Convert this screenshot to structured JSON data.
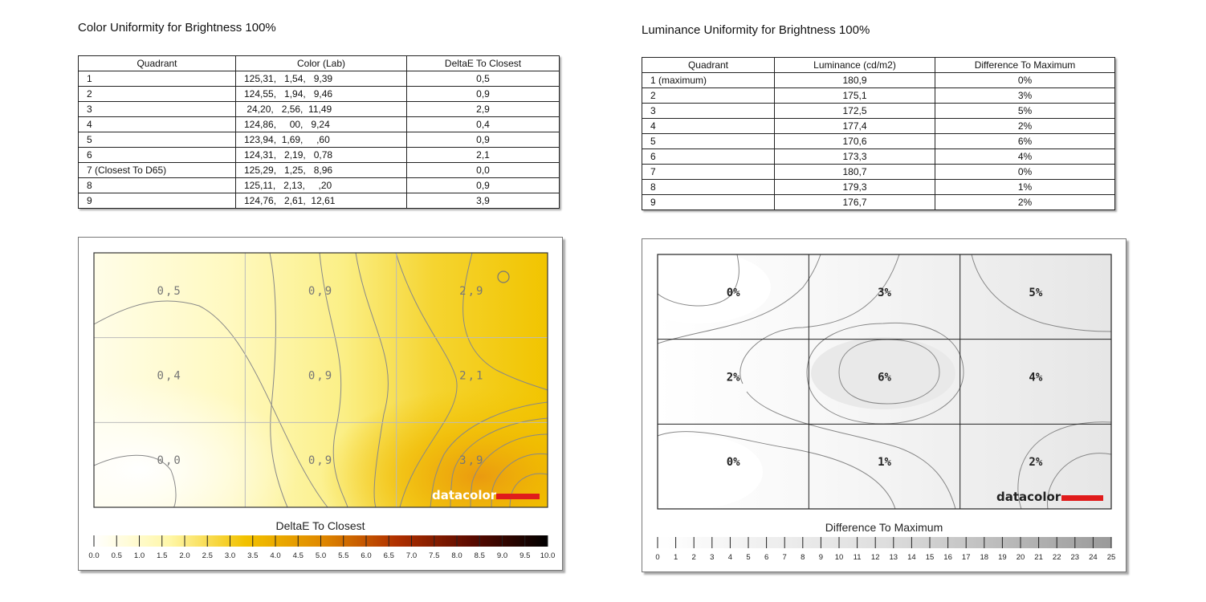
{
  "chart_data": [
    {
      "type": "table",
      "title": "Color Uniformity for Brightness 100%",
      "columns": [
        "Quadrant",
        "Color (Lab)",
        "DeltaE To Closest"
      ],
      "rows": [
        [
          "1",
          "125,31,   1,54,   9,39",
          "0,5"
        ],
        [
          "2",
          "124,55,   1,94,   9,46",
          "0,9"
        ],
        [
          "3",
          " 24,20,   2,56,  11,49",
          "2,9"
        ],
        [
          "4",
          "124,86,     00,   9,24",
          "0,4"
        ],
        [
          "5",
          "123,94,  1,69,     ,60",
          "0,9"
        ],
        [
          "6",
          "124,31,   2,19,   0,78",
          "2,1"
        ],
        [
          "7 (Closest To D65)",
          "125,29,   1,25,   8,96",
          "0,0"
        ],
        [
          "8",
          "125,11,   2,13,     ,20",
          "0,9"
        ],
        [
          "9",
          "124,76,   2,61,  12,61",
          "3,9"
        ]
      ]
    },
    {
      "type": "table",
      "title": "Luminance Uniformity for Brightness 100%",
      "columns": [
        "Quadrant",
        "Luminance (cd/m2)",
        "Difference To Maximum"
      ],
      "rows": [
        [
          "1 (maximum)",
          "180,9",
          "0%"
        ],
        [
          "2",
          "175,1",
          "3%"
        ],
        [
          "3",
          "172,5",
          "5%"
        ],
        [
          "4",
          "177,4",
          "2%"
        ],
        [
          "5",
          "170,6",
          "6%"
        ],
        [
          "6",
          "173,3",
          "4%"
        ],
        [
          "7",
          "180,7",
          "0%"
        ],
        [
          "8",
          "179,3",
          "1%"
        ],
        [
          "9",
          "176,7",
          "2%"
        ]
      ]
    },
    {
      "type": "heatmap",
      "title": "DeltaE To Closest",
      "grid": [
        [
          "0,5",
          "0,9",
          "2,9"
        ],
        [
          "0,4",
          "0,9",
          "2,1"
        ],
        [
          "0,0",
          "0,9",
          "3,9"
        ]
      ],
      "values": [
        [
          0.5,
          0.9,
          2.9
        ],
        [
          0.4,
          0.9,
          2.1
        ],
        [
          0.0,
          0.9,
          3.9
        ]
      ],
      "scale_ticks": [
        "0.0",
        "0.5",
        "1.0",
        "1.5",
        "2.0",
        "2.5",
        "3.0",
        "3.5",
        "4.0",
        "4.5",
        "5.0",
        "5.5",
        "6.0",
        "6.5",
        "7.0",
        "7.5",
        "8.0",
        "8.5",
        "9.0",
        "9.5",
        "10.0"
      ],
      "scale_range": [
        0,
        10
      ],
      "scale_colors": [
        "#ffffff",
        "#fff7a8",
        "#f2c200",
        "#e08a00",
        "#b03000",
        "#5a0a00",
        "#000000"
      ],
      "logo": "datacolor"
    },
    {
      "type": "heatmap",
      "title": "Difference To Maximum",
      "grid": [
        [
          "0%",
          "3%",
          "5%"
        ],
        [
          "2%",
          "6%",
          "4%"
        ],
        [
          "0%",
          "1%",
          "2%"
        ]
      ],
      "values": [
        [
          0,
          3,
          5
        ],
        [
          2,
          6,
          4
        ],
        [
          0,
          1,
          2
        ]
      ],
      "scale_ticks": [
        "0",
        "1",
        "2",
        "3",
        "4",
        "5",
        "6",
        "7",
        "8",
        "9",
        "10",
        "11",
        "12",
        "13",
        "14",
        "15",
        "16",
        "17",
        "18",
        "19",
        "20",
        "21",
        "22",
        "23",
        "24",
        "25"
      ],
      "scale_range": [
        0,
        25
      ],
      "scale_colors": [
        "#ffffff",
        "#dedede",
        "#9a9a9a"
      ],
      "logo": "datacolor"
    }
  ]
}
